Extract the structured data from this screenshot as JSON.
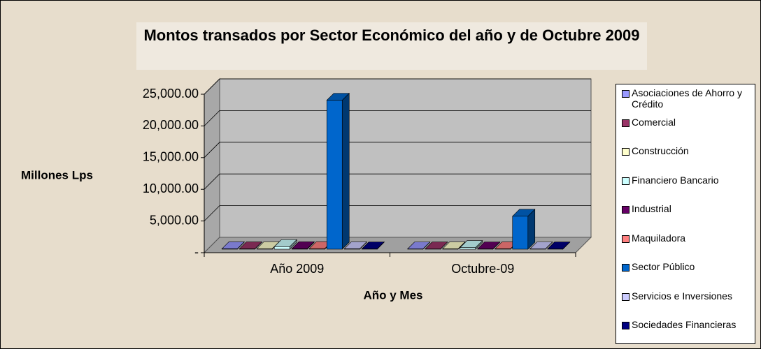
{
  "chart_data": {
    "type": "bar3d",
    "title": "Montos transados por Sector Económico del año y de Octubre 2009",
    "y_label": "Millones Lps",
    "x_label": "Año y Mes",
    "categories": [
      "Año 2009",
      "Octubre-09"
    ],
    "series": [
      {
        "name": "Asociaciones de Ahorro y Crédito",
        "color": "#9999ff",
        "values": [
          60,
          40
        ]
      },
      {
        "name": "Comercial",
        "color": "#993366",
        "values": [
          50,
          30
        ]
      },
      {
        "name": "Construcción",
        "color": "#ffffcc",
        "values": [
          80,
          50
        ]
      },
      {
        "name": "Financiero Bancario",
        "color": "#ccffff",
        "values": [
          400,
          250
        ]
      },
      {
        "name": "Industrial",
        "color": "#660066",
        "values": [
          70,
          40
        ]
      },
      {
        "name": "Maquiladora",
        "color": "#ff8080",
        "values": [
          90,
          60
        ]
      },
      {
        "name": "Sector Público",
        "color": "#0066cc",
        "values": [
          23500,
          5200
        ]
      },
      {
        "name": "Servicios e Inversiones",
        "color": "#ccccff",
        "values": [
          60,
          40
        ]
      },
      {
        "name": "Sociedades Financieras",
        "color": "#000080",
        "values": [
          40,
          30
        ]
      }
    ],
    "ylim": [
      0,
      25000
    ],
    "yticks": [
      {
        "value": 0,
        "label": "-"
      },
      {
        "value": 5000,
        "label": "5,000.00"
      },
      {
        "value": 10000,
        "label": "10,000.00"
      },
      {
        "value": 15000,
        "label": "15,000.00"
      },
      {
        "value": 20000,
        "label": "20,000.00"
      },
      {
        "value": 25000,
        "label": "25,000.00"
      }
    ],
    "grid": true,
    "legend": "right"
  }
}
